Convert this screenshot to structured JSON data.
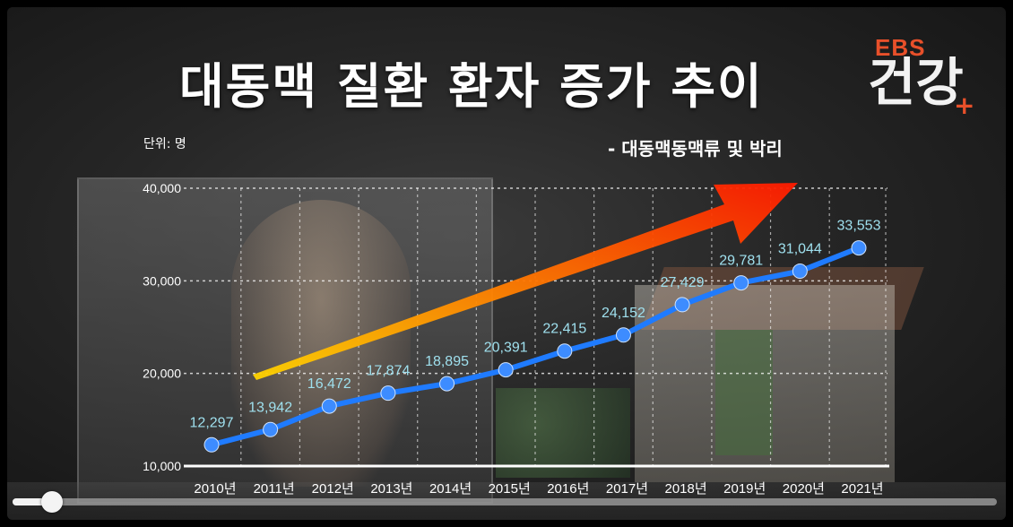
{
  "header": {
    "title": "대동맥 질환 환자 증가 추이",
    "subtitle": "- 대동맥동맥류 및 박리",
    "unit": "단위: 명"
  },
  "logo": {
    "brand": "EBS",
    "name": "건강",
    "plus": "+"
  },
  "colors": {
    "line": "#1f7bff",
    "marker": "#3d8cff",
    "data_label": "#9fe0ee",
    "arrow_start": "#ffd400",
    "arrow_end": "#ff1a00"
  },
  "player": {
    "progress": 0.04
  },
  "chart_data": {
    "type": "line",
    "title": "대동맥 질환 환자 증가 추이",
    "subtitle": "- 대동맥동맥류 및 박리",
    "unit": "단위: 명",
    "categories": [
      "2010년",
      "2011년",
      "2012년",
      "2013년",
      "2014년",
      "2015년",
      "2016년",
      "2017년",
      "2018년",
      "2019년",
      "2020년",
      "2021년"
    ],
    "series": [
      {
        "values": [
          12297,
          13942,
          16472,
          17874,
          18895,
          20391,
          22415,
          24152,
          27429,
          29781,
          31044,
          33553
        ]
      }
    ],
    "data_labels": [
      "12,297",
      "13,942",
      "16,472",
      "17,874",
      "18,895",
      "20,391",
      "22,415",
      "24,152",
      "27,429",
      "29,781",
      "31,044",
      "33,553"
    ],
    "yticks": [
      10000,
      20000,
      30000,
      40000
    ],
    "ytick_labels": [
      "10,000",
      "20,000",
      "30,000",
      "40,000"
    ],
    "ylim": [
      10000,
      40000
    ],
    "grid": true,
    "legend": "none",
    "trend_arrow": true
  }
}
